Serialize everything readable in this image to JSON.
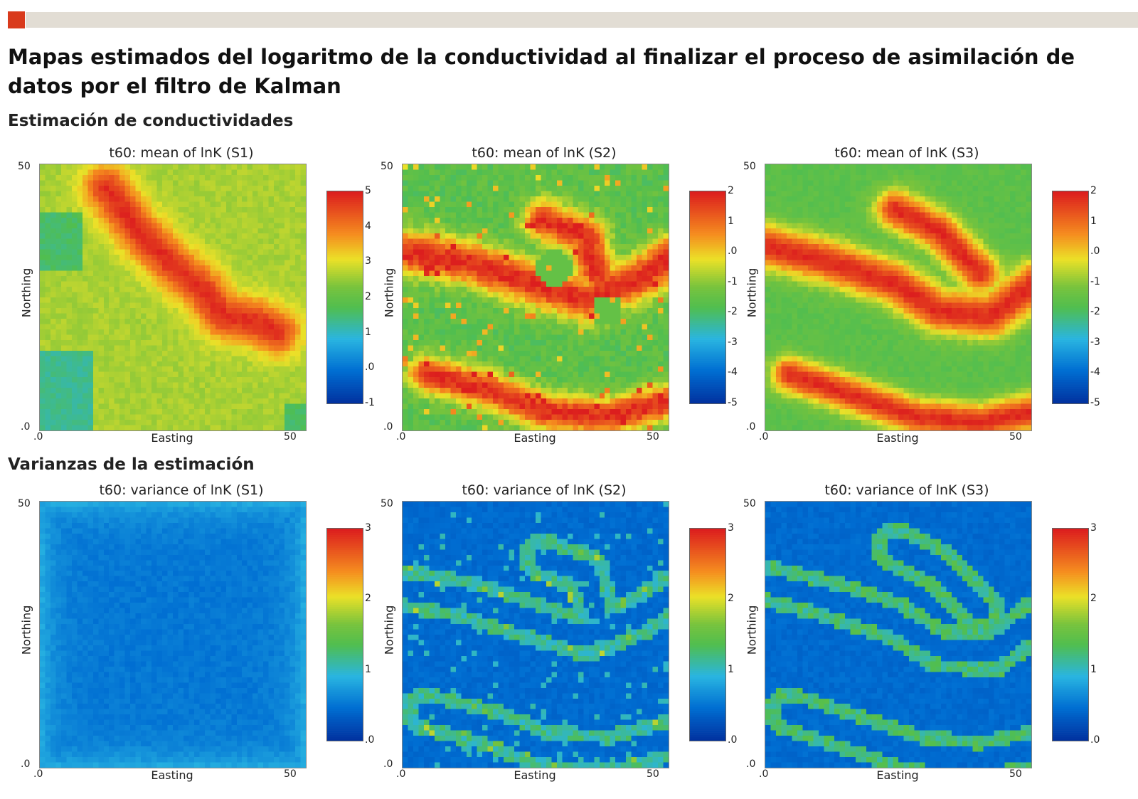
{
  "header": {
    "title": "Mapas estimados del logaritmo de la conductividad al finalizar el proceso de asimilación de datos por el filtro de Kalman",
    "accent_color": "#d93a1c"
  },
  "sections": {
    "mean_title": "Estimación de conductividades",
    "variance_title": "Varianzas de la estimación"
  },
  "chart_data": [
    {
      "type": "heatmap",
      "title": "t60: mean of lnK (S1)",
      "xlabel": "Easting",
      "ylabel": "Northing",
      "xlim": [
        0,
        50
      ],
      "ylim": [
        0,
        50
      ],
      "x_ticks": [
        ".0",
        "50"
      ],
      "y_ticks": [
        "50",
        ".0"
      ],
      "colorbar": {
        "range": [
          -1,
          5
        ],
        "ticks": [
          "5",
          "4",
          "3",
          "2",
          "1",
          ".0",
          "-1"
        ]
      },
      "grid_size": 50,
      "colormap": "jet"
    },
    {
      "type": "heatmap",
      "title": "t60: mean of lnK (S2)",
      "xlabel": "Easting",
      "ylabel": "Northing",
      "xlim": [
        0,
        50
      ],
      "ylim": [
        0,
        50
      ],
      "x_ticks": [
        ".0",
        "50"
      ],
      "y_ticks": [
        "50",
        ".0"
      ],
      "colorbar": {
        "range": [
          -5,
          2
        ],
        "ticks": [
          "2",
          "1",
          ".0",
          "-1",
          "-2",
          "-3",
          "-4",
          "-5"
        ]
      },
      "grid_size": 50,
      "colormap": "jet"
    },
    {
      "type": "heatmap",
      "title": "t60: mean of lnK (S3)",
      "xlabel": "Easting",
      "ylabel": "Northing",
      "xlim": [
        0,
        50
      ],
      "ylim": [
        0,
        50
      ],
      "x_ticks": [
        ".0",
        "50"
      ],
      "y_ticks": [
        "50",
        ".0"
      ],
      "colorbar": {
        "range": [
          -5,
          2
        ],
        "ticks": [
          "2",
          "1",
          ".0",
          "-1",
          "-2",
          "-3",
          "-4",
          "-5"
        ]
      },
      "grid_size": 50,
      "colormap": "jet"
    },
    {
      "type": "heatmap",
      "title": "t60: variance of lnK (S1)",
      "xlabel": "Easting",
      "ylabel": "Northing",
      "xlim": [
        0,
        50
      ],
      "ylim": [
        0,
        50
      ],
      "x_ticks": [
        ".0",
        "50"
      ],
      "y_ticks": [
        "50",
        ".0"
      ],
      "colorbar": {
        "range": [
          0,
          3
        ],
        "ticks": [
          "3",
          "2",
          "1",
          ".0"
        ]
      },
      "grid_size": 50,
      "colormap": "jet"
    },
    {
      "type": "heatmap",
      "title": "t60: variance of lnK (S2)",
      "xlabel": "Easting",
      "ylabel": "Northing",
      "xlim": [
        0,
        50
      ],
      "ylim": [
        0,
        50
      ],
      "x_ticks": [
        ".0",
        "50"
      ],
      "y_ticks": [
        "50",
        ".0"
      ],
      "colorbar": {
        "range": [
          0,
          3
        ],
        "ticks": [
          "3",
          "2",
          "1",
          ".0"
        ]
      },
      "grid_size": 50,
      "colormap": "jet"
    },
    {
      "type": "heatmap",
      "title": "t60: variance of lnK (S3)",
      "xlabel": "Easting",
      "ylabel": "Northing",
      "xlim": [
        0,
        50
      ],
      "ylim": [
        0,
        50
      ],
      "x_ticks": [
        ".0",
        "50"
      ],
      "y_ticks": [
        "50",
        ".0"
      ],
      "colorbar": {
        "range": [
          0,
          3
        ],
        "ticks": [
          "3",
          "2",
          "1",
          ".0"
        ]
      },
      "grid_size": 50,
      "colormap": "jet"
    }
  ]
}
